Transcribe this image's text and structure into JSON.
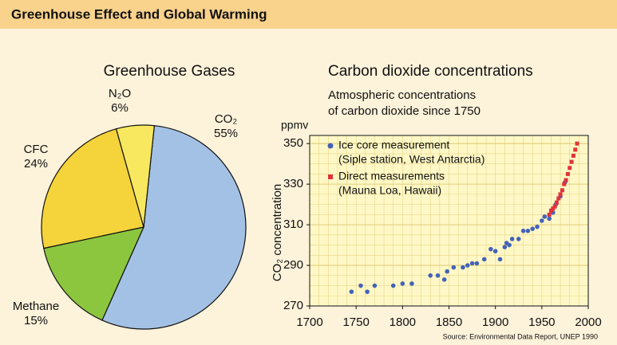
{
  "header": {
    "title": "Greenhouse Effect and Global Warming"
  },
  "source": "Source: Environmental Data Report, UNEP 1990",
  "chart_data": [
    {
      "type": "pie",
      "title": "Greenhouse Gases",
      "categories": [
        "CO₂",
        "Methane",
        "CFC",
        "N₂O"
      ],
      "values": [
        55,
        15,
        24,
        6
      ],
      "value_labels": [
        "55%",
        "15%",
        "24%",
        "6%"
      ],
      "colors": [
        "#a3c1e4",
        "#8cc63f",
        "#f5d33a",
        "#f7e860"
      ]
    },
    {
      "type": "scatter",
      "title": "Carbon dioxide concentrations",
      "subtitle": [
        "Atmospheric concentrations",
        "of carbon dioxide since 1750"
      ],
      "y_unit": "ppmv",
      "y_label": "CO₂ concentration",
      "xlim": [
        1700,
        2000
      ],
      "xticks": [
        1700,
        1750,
        1800,
        1850,
        1900,
        1950,
        2000
      ],
      "ylim": [
        270,
        354
      ],
      "yticks": [
        270,
        290,
        310,
        330,
        350
      ],
      "grid": true,
      "legend": "upper left",
      "series": [
        {
          "name": "Ice core measurement",
          "description": "(Siple station, West Antarctia)",
          "color": "#4463b8",
          "marker": "circle",
          "x": [
            1745,
            1755,
            1762,
            1770,
            1790,
            1800,
            1810,
            1830,
            1838,
            1845,
            1848,
            1855,
            1865,
            1870,
            1875,
            1880,
            1888,
            1895,
            1900,
            1905,
            1910,
            1912,
            1915,
            1918,
            1925,
            1930,
            1935,
            1940,
            1945,
            1950,
            1953,
            1958,
            1962,
            1965,
            1970,
            1975
          ],
          "values": [
            277,
            280,
            277,
            280,
            280,
            281,
            281,
            285,
            285,
            283,
            287,
            289,
            289,
            290,
            291,
            291,
            293,
            298,
            297,
            293,
            299,
            301,
            300,
            303,
            303,
            307,
            307,
            308,
            309,
            312,
            314,
            313,
            316,
            320,
            324,
            331
          ]
        },
        {
          "name": "Direct measurements",
          "description": "(Mauna Loa, Hawaii)",
          "color": "#e0343a",
          "marker": "square",
          "x": [
            1958,
            1960,
            1962,
            1964,
            1966,
            1968,
            1970,
            1972,
            1974,
            1976,
            1978,
            1980,
            1982,
            1984,
            1986,
            1988
          ],
          "values": [
            315,
            317,
            318,
            319,
            321,
            323,
            325,
            327,
            330,
            332,
            335,
            338,
            341,
            344,
            347,
            350
          ]
        }
      ]
    }
  ]
}
